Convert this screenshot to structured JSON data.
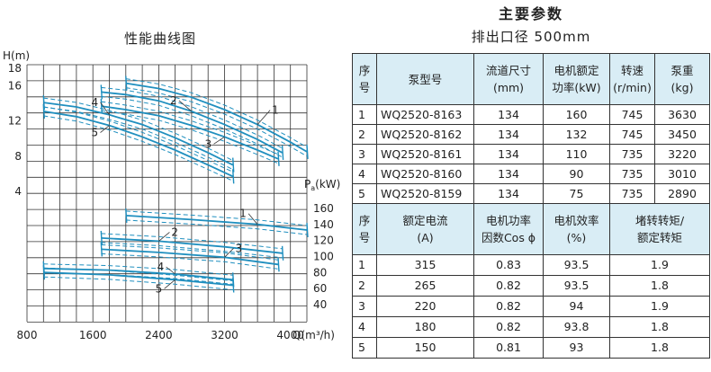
{
  "chart": {
    "title": "性能曲线图",
    "y_axis_label": "H(m)",
    "power_axis_label_main": "P",
    "power_axis_label_sub": "a",
    "power_axis_label_unit": "(kW)",
    "x_axis_label": "Q(m³/h)"
  },
  "chart_data": {
    "type": "line",
    "x_ticks": [
      800,
      1600,
      2400,
      3200,
      4000
    ],
    "xlim": [
      800,
      4200
    ],
    "head_ticks": [
      4,
      8,
      12,
      16,
      18
    ],
    "head_ylim": [
      0,
      18
    ],
    "power_ticks": [
      40,
      60,
      80,
      100,
      120,
      140,
      160
    ],
    "power_ylim": [
      30,
      175
    ],
    "head_series": [
      {
        "name": "1",
        "points": [
          [
            2000,
            16.2
          ],
          [
            2400,
            15.6
          ],
          [
            2800,
            14.6
          ],
          [
            3200,
            13.2
          ],
          [
            3600,
            11.5
          ],
          [
            4000,
            9.5
          ],
          [
            4200,
            8.4
          ]
        ]
      },
      {
        "name": "2",
        "points": [
          [
            1700,
            15.2
          ],
          [
            2000,
            14.9
          ],
          [
            2400,
            14.2
          ],
          [
            2800,
            13.0
          ],
          [
            3200,
            11.5
          ],
          [
            3600,
            9.8
          ],
          [
            3900,
            8.3
          ]
        ]
      },
      {
        "name": "3",
        "points": [
          [
            1700,
            13.6
          ],
          [
            2000,
            13.2
          ],
          [
            2400,
            12.5
          ],
          [
            2800,
            11.4
          ],
          [
            3200,
            10.1
          ],
          [
            3600,
            8.6
          ],
          [
            3850,
            7.6
          ]
        ]
      },
      {
        "name": "4",
        "points": [
          [
            1000,
            14.0
          ],
          [
            1400,
            13.5
          ],
          [
            1800,
            12.6
          ],
          [
            2200,
            11.5
          ],
          [
            2600,
            10.0
          ],
          [
            3000,
            8.3
          ],
          [
            3300,
            6.9
          ]
        ]
      },
      {
        "name": "5",
        "points": [
          [
            1000,
            13.0
          ],
          [
            1400,
            12.4
          ],
          [
            1800,
            11.4
          ],
          [
            2200,
            10.1
          ],
          [
            2600,
            8.6
          ],
          [
            3000,
            6.9
          ],
          [
            3300,
            5.6
          ]
        ]
      }
    ],
    "power_series": [
      {
        "name": "1",
        "points": [
          [
            2000,
            150
          ],
          [
            2800,
            145
          ],
          [
            3600,
            139
          ],
          [
            4200,
            132
          ]
        ]
      },
      {
        "name": "2",
        "points": [
          [
            1700,
            122
          ],
          [
            2400,
            118
          ],
          [
            3200,
            111
          ],
          [
            3900,
            103
          ]
        ]
      },
      {
        "name": "3",
        "points": [
          [
            1700,
            108
          ],
          [
            2400,
            104
          ],
          [
            3200,
            98
          ],
          [
            3850,
            89
          ]
        ]
      },
      {
        "name": "4",
        "points": [
          [
            1000,
            84
          ],
          [
            1800,
            82
          ],
          [
            2600,
            77
          ],
          [
            3300,
            70
          ]
        ]
      },
      {
        "name": "5",
        "points": [
          [
            1000,
            79
          ],
          [
            1800,
            76
          ],
          [
            2600,
            70
          ],
          [
            3300,
            63
          ]
        ]
      }
    ],
    "curve_labels": [
      "1",
      "2",
      "3",
      "4",
      "5"
    ]
  },
  "table": {
    "title": "主要参数",
    "subtitle": "排出口径   500mm",
    "header1": {
      "seq": [
        "序",
        "号"
      ],
      "model": "泵型号",
      "size": [
        "流道尺寸",
        "(mm)"
      ],
      "motor_power": [
        "电机额定",
        "功率(kW)"
      ],
      "speed": [
        "转速",
        "(r/min)"
      ],
      "weight": [
        "泵重",
        "(kg)"
      ]
    },
    "rows1": [
      {
        "no": "1",
        "model": "WQ2520-8163",
        "size": "134",
        "power": "160",
        "speed": "745",
        "weight": "3630"
      },
      {
        "no": "2",
        "model": "WQ2520-8162",
        "size": "134",
        "power": "132",
        "speed": "745",
        "weight": "3450"
      },
      {
        "no": "3",
        "model": "WQ2520-8161",
        "size": "134",
        "power": "110",
        "speed": "735",
        "weight": "3220"
      },
      {
        "no": "4",
        "model": "WQ2520-8160",
        "size": "134",
        "power": "90",
        "speed": "735",
        "weight": "3010"
      },
      {
        "no": "5",
        "model": "WQ2520-8159",
        "size": "134",
        "power": "75",
        "speed": "735",
        "weight": "2890"
      }
    ],
    "header2": {
      "seq": [
        "序",
        "号"
      ],
      "current": [
        "额定电流",
        "(A)"
      ],
      "pf": [
        "电机功率",
        "因数Cos ϕ"
      ],
      "eff": [
        "电机效率",
        "(%)"
      ],
      "torque": [
        "堵转转矩/",
        "额定转矩"
      ]
    },
    "rows2": [
      {
        "no": "1",
        "current": "315",
        "pf": "0.83",
        "eff": "93.5",
        "torque": "1.9"
      },
      {
        "no": "2",
        "current": "265",
        "pf": "0.82",
        "eff": "93.5",
        "torque": "1.8"
      },
      {
        "no": "3",
        "current": "220",
        "pf": "0.82",
        "eff": "94",
        "torque": "1.9"
      },
      {
        "no": "4",
        "current": "180",
        "pf": "0.82",
        "eff": "93.8",
        "torque": "1.8"
      },
      {
        "no": "5",
        "current": "150",
        "pf": "0.81",
        "eff": "93",
        "torque": "1.8"
      }
    ]
  }
}
